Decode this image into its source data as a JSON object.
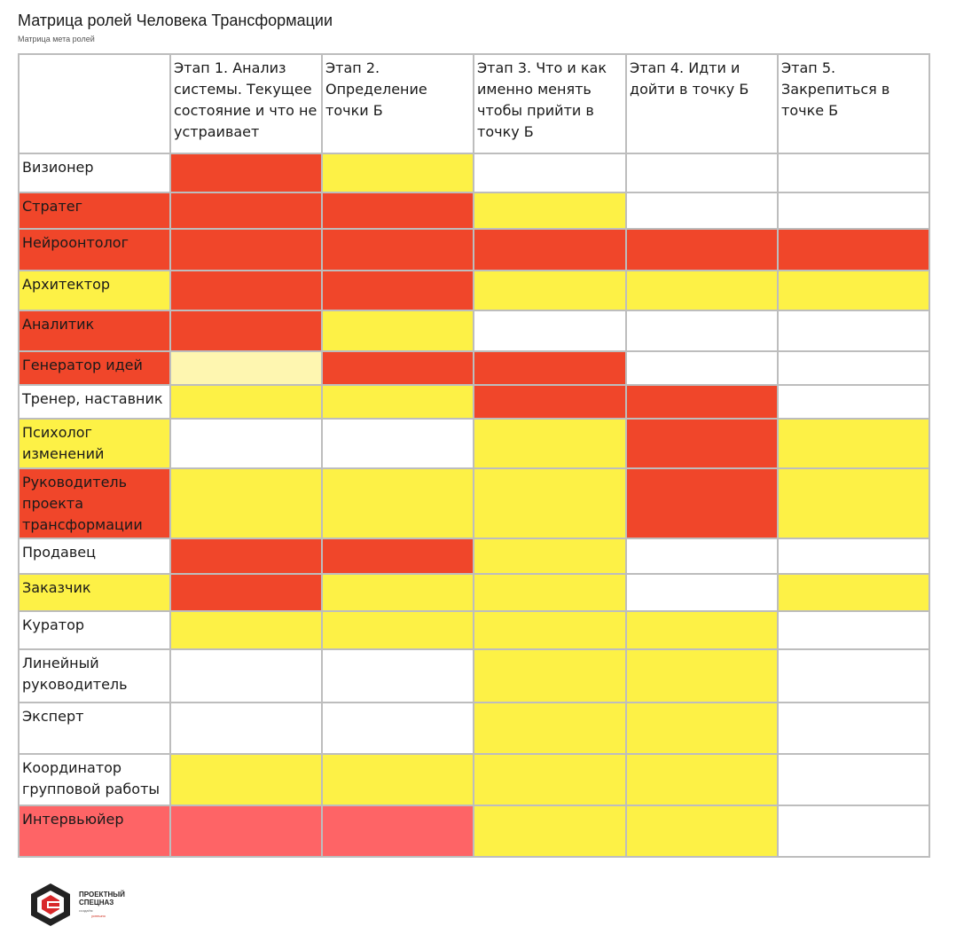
{
  "page": {
    "title": "Матрица ролей Человека Трансформации",
    "subtitle": "Матрица мета ролей"
  },
  "colors": {
    "red": "#f0462a",
    "yellow": "#fdf146",
    "light_yellow": "#fef6b0",
    "pink": "#fe6466",
    "white": "#ffffff",
    "border": "#bdbdbd"
  },
  "matrix": {
    "header": [
      "",
      "Этап 1. Анализ системы. Текущее состояние и что не устраивает",
      "Этап 2. Определение точки Б",
      "Этап 3. Что и как именно менять чтобы прийти в точку Б",
      "Этап 4. Идти и дойти в точку Б",
      "Этап 5. Закрепиться в точке Б"
    ],
    "rows": [
      {
        "role": "Визионер",
        "role_color": "white",
        "cells": [
          "red",
          "yellow",
          "white",
          "white",
          "white"
        ]
      },
      {
        "role": "Стратег",
        "role_color": "red",
        "cells": [
          "red",
          "red",
          "yellow",
          "white",
          "white"
        ]
      },
      {
        "role": "Нейроонтолог",
        "role_color": "red",
        "cells": [
          "red",
          "red",
          "red",
          "red",
          "red"
        ]
      },
      {
        "role": "Архитектор",
        "role_color": "yellow",
        "cells": [
          "red",
          "red",
          "yellow",
          "yellow",
          "yellow"
        ]
      },
      {
        "role": "Аналитик",
        "role_color": "red",
        "cells": [
          "red",
          "yellow",
          "white",
          "white",
          "white"
        ]
      },
      {
        "role": "Генератор идей",
        "role_color": "red",
        "cells": [
          "light_yellow",
          "red",
          "red",
          "white",
          "white"
        ]
      },
      {
        "role": "Тренер, наставник",
        "role_color": "white",
        "cells": [
          "yellow",
          "yellow",
          "red",
          "red",
          "white"
        ]
      },
      {
        "role": "Психолог изменений",
        "role_color": "yellow",
        "cells": [
          "white",
          "white",
          "yellow",
          "red",
          "yellow"
        ]
      },
      {
        "role": "Руководитель проекта трансформации",
        "role_color": "red",
        "cells": [
          "yellow",
          "yellow",
          "yellow",
          "red",
          "yellow"
        ]
      },
      {
        "role": "Продавец",
        "role_color": "white",
        "cells": [
          "red",
          "red",
          "yellow",
          "white",
          "white"
        ]
      },
      {
        "role": "Заказчик",
        "role_color": "yellow",
        "cells": [
          "red",
          "yellow",
          "yellow",
          "white",
          "yellow"
        ]
      },
      {
        "role": "Куратор",
        "role_color": "white",
        "cells": [
          "yellow",
          "yellow",
          "yellow",
          "yellow",
          "white"
        ]
      },
      {
        "role": "Линейный руководитель",
        "role_color": "white",
        "cells": [
          "white",
          "white",
          "yellow",
          "yellow",
          "white"
        ]
      },
      {
        "role": "Эксперт",
        "role_color": "white",
        "cells": [
          "white",
          "white",
          "yellow",
          "yellow",
          "white"
        ]
      },
      {
        "role": "Координатор групповой работы",
        "role_color": "white",
        "cells": [
          "yellow",
          "yellow",
          "yellow",
          "yellow",
          "white"
        ]
      },
      {
        "role": "Интервьюйер",
        "role_color": "pink",
        "cells": [
          "pink",
          "pink",
          "yellow",
          "yellow",
          "white"
        ]
      }
    ]
  },
  "logo": {
    "line1": "ПРОЕКТНЫЙ",
    "line2": "СПЕЦНАЗ",
    "tagline": "создаём",
    "tagline2": "успешно"
  }
}
